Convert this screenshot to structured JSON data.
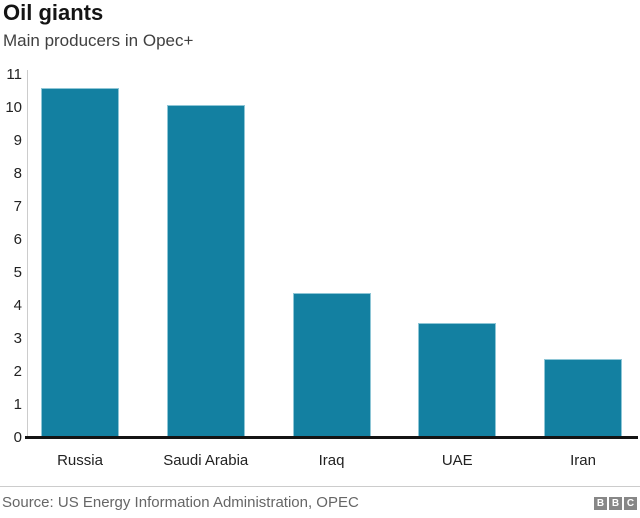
{
  "header": {
    "title": "Oil giants",
    "subtitle": "Main producers in Opec+"
  },
  "chart_data": {
    "type": "bar",
    "title": "Oil giants",
    "subtitle": "Main producers in Opec+",
    "categories": [
      "Russia",
      "Saudi Arabia",
      "Iraq",
      "UAE",
      "Iran"
    ],
    "values": [
      10.6,
      10.1,
      4.4,
      3.5,
      2.4
    ],
    "xlabel": "",
    "ylabel": "",
    "ylim": [
      0,
      11
    ],
    "yticks": [
      0,
      1,
      2,
      3,
      4,
      5,
      6,
      7,
      8,
      9,
      10,
      11
    ],
    "grid": false,
    "legend": "none",
    "bar_color": "#1380a1"
  },
  "footer": {
    "source": "Source: US Energy Information Administration, OPEC",
    "logo_letters": [
      "B",
      "B",
      "C"
    ]
  },
  "colors": {
    "bar": "#1380a1",
    "bar_edge": "#8ec6d6",
    "axis_line": "#cccccc",
    "baseline": "#141414",
    "title_text": "#141414",
    "subtitle_text": "#404040",
    "tick_text": "#222222",
    "source_text": "#666666",
    "logo_block": "#878787"
  }
}
